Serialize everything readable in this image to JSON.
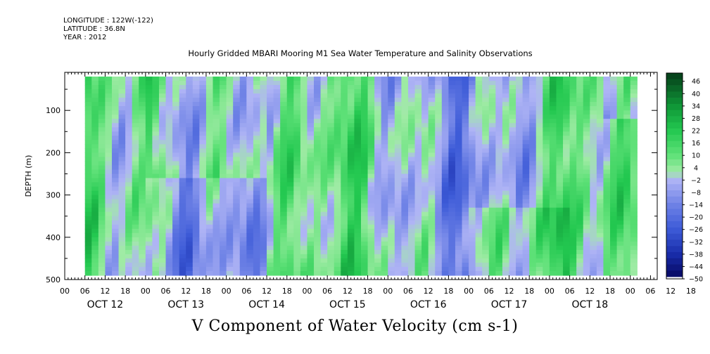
{
  "header": {
    "longitude": "LONGITUDE : 122W(-122)",
    "latitude": "LATITUDE : 36.8N",
    "year": "YEAR : 2012",
    "title": "Hourly Gridded MBARI Mooring M1 Sea Water Temperature and Salinity Observations"
  },
  "chart_data": {
    "type": "heatmap",
    "title": "V Component of Water Velocity (cm s-1)",
    "xlabel": "",
    "ylabel": "DEPTH (m)",
    "x_day_labels": [
      "OCT 12",
      "OCT 13",
      "OCT 14",
      "OCT 15",
      "OCT 16",
      "OCT 17",
      "OCT 18"
    ],
    "x_hour_ticks": [
      "00",
      "06",
      "12",
      "18",
      "00",
      "06",
      "12",
      "18",
      "00",
      "06",
      "12",
      "18",
      "00",
      "06",
      "12",
      "18",
      "00",
      "06",
      "12",
      "18",
      "00",
      "06",
      "12",
      "18",
      "00",
      "06",
      "12",
      "18",
      "00",
      "06",
      "12",
      "18"
    ],
    "x_range_hours": [
      0,
      176
    ],
    "data_start_hour": 6,
    "data_end_hour": 170,
    "y_ticks": [
      100,
      200,
      300,
      400,
      500
    ],
    "y_range": [
      10,
      500
    ],
    "y_data_range": [
      20,
      485
    ],
    "colorbar": {
      "labels": [
        "46",
        "40",
        "34",
        "28",
        "22",
        "16",
        "10",
        "4",
        "-2",
        "-8",
        "-14",
        "-20",
        "-26",
        "-32",
        "-38",
        "-44",
        "-50"
      ],
      "range": [
        -50,
        50
      ],
      "step": 3
    },
    "colors": {
      "strong_positive": "#0a4a1a",
      "positive": "#22cc55",
      "weak_positive": "#9aeea0",
      "weak_negative": "#b4b8f4",
      "negative": "#5a6ae6",
      "strong_negative": "#0a0a70"
    }
  }
}
